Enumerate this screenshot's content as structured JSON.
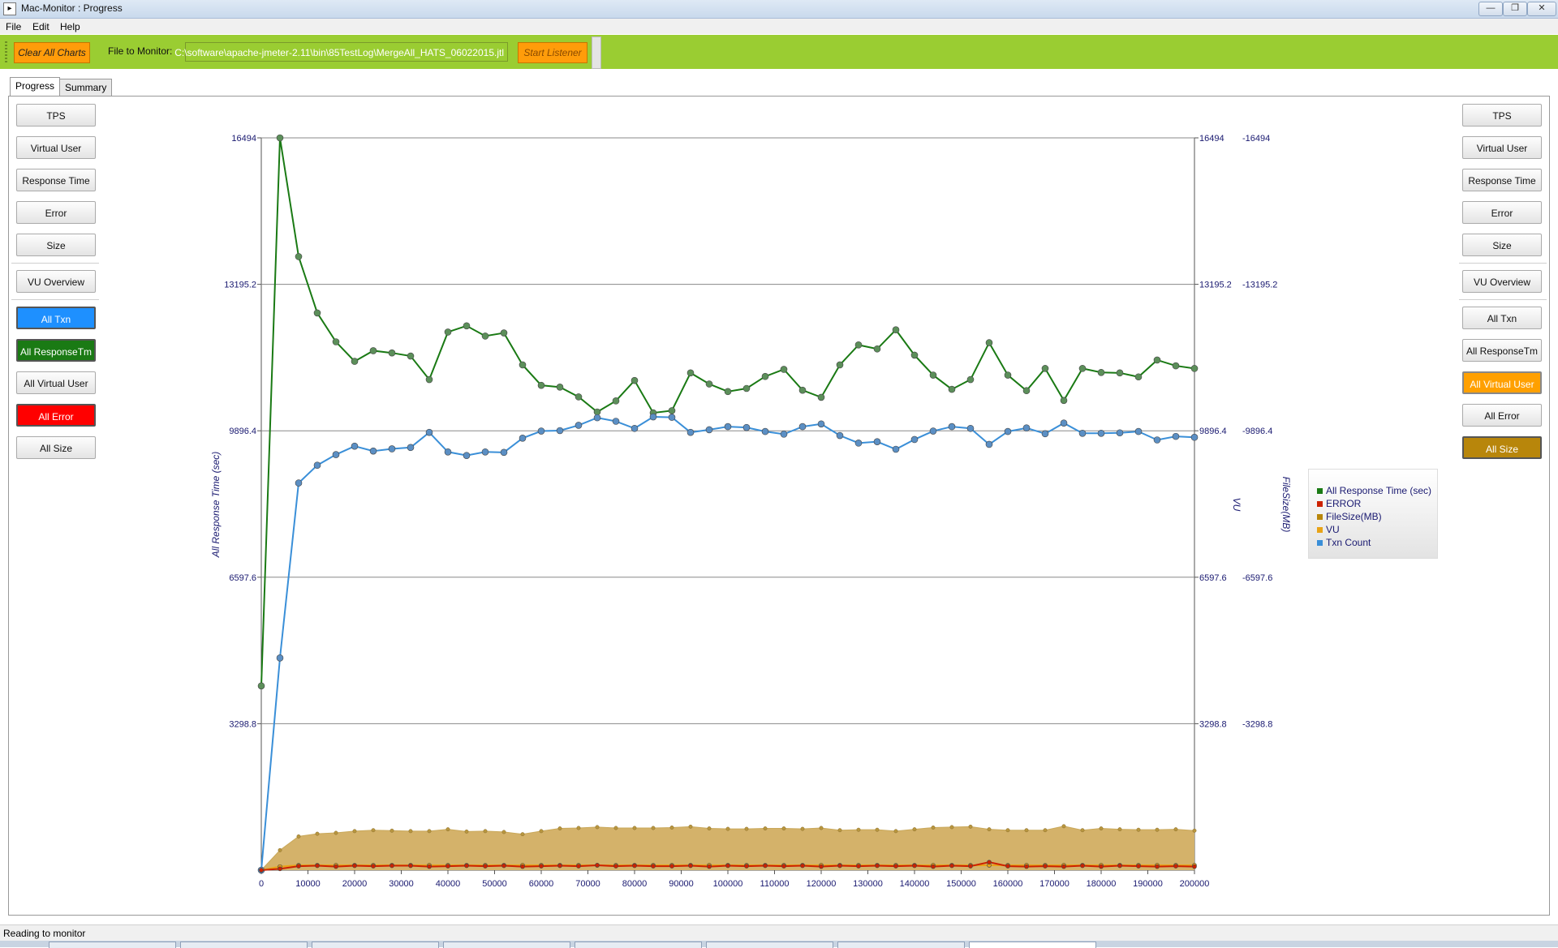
{
  "window": {
    "title": "Mac-Monitor : Progress",
    "controls": {
      "minimize": "—",
      "restore": "❐",
      "close": "✕"
    }
  },
  "menu": [
    "File",
    "Edit",
    "Help"
  ],
  "toolbar": {
    "clear_label": "Clear All Charts",
    "file_label": "File to Monitor:",
    "file_value": "C:\\software\\apache-jmeter-2.11\\bin\\85TestLog\\MergeAll_HATS_06022015.jtl",
    "start_label": "Start Listener"
  },
  "tabs": [
    "Progress",
    "Summary"
  ],
  "left_buttons": [
    "TPS",
    "Virtual User",
    "Response Time",
    "Error",
    "Size",
    "VU Overview",
    "All Txn",
    "All ResponseTm",
    "All Virtual User",
    "All Error",
    "All Size"
  ],
  "right_buttons": [
    "TPS",
    "Virtual User",
    "Response Time",
    "Error",
    "Size",
    "VU Overview",
    "All Txn",
    "All ResponseTm",
    "All Virtual User",
    "All Error",
    "All Size"
  ],
  "status": "Reading to monitor",
  "chart_data": {
    "type": "line",
    "ylabel": "All Response Time (sec)",
    "ylabel_right": [
      "VU",
      "FileSize(MB)"
    ],
    "ylim": [
      0,
      16494
    ],
    "yticks": [
      "3298.8",
      "6597.6",
      "9896.4",
      "13195.2",
      "16494"
    ],
    "xlim": [
      0,
      200000
    ],
    "xticks": [
      "0",
      "10000",
      "20000",
      "30000",
      "40000",
      "50000",
      "60000",
      "70000",
      "80000",
      "90000",
      "100000",
      "110000",
      "120000",
      "130000",
      "140000",
      "150000",
      "160000",
      "170000",
      "180000",
      "190000",
      "200000"
    ],
    "legend_position": "right",
    "grid": true,
    "series": [
      {
        "name": "All Response Time (sec)",
        "color": "#1a7a14",
        "kind": "line",
        "x": [
          0,
          4000,
          8000,
          12000,
          16000,
          20000,
          24000,
          28000,
          32000,
          36000,
          40000,
          44000,
          48000,
          52000,
          56000,
          60000,
          64000,
          68000,
          72000,
          76000,
          80000,
          84000,
          88000,
          92000,
          96000,
          100000,
          104000,
          108000,
          112000,
          116000,
          120000,
          124000,
          128000,
          132000,
          136000,
          140000,
          144000,
          148000,
          152000,
          156000,
          160000,
          164000,
          168000,
          172000,
          176000,
          180000,
          184000,
          188000,
          192000,
          196000,
          200000
        ],
        "values": [
          4150,
          16494,
          13820,
          12550,
          11900,
          11460,
          11700,
          11650,
          11580,
          11050,
          12120,
          12260,
          12030,
          12100,
          11380,
          10920,
          10880,
          10660,
          10320,
          10570,
          11030,
          10300,
          10350,
          11200,
          10950,
          10780,
          10850,
          11120,
          11280,
          10810,
          10650,
          11380,
          11830,
          11740,
          12170,
          11600,
          11150,
          10830,
          11050,
          11880,
          11150,
          10800,
          11300,
          10580,
          11300,
          11210,
          11200,
          11110,
          11490,
          11360,
          11300
        ]
      },
      {
        "name": "Txn Count",
        "color": "#3a8fd8",
        "kind": "line",
        "x": [
          0,
          4000,
          8000,
          12000,
          16000,
          20000,
          24000,
          28000,
          32000,
          36000,
          40000,
          44000,
          48000,
          52000,
          56000,
          60000,
          64000,
          68000,
          72000,
          76000,
          80000,
          84000,
          88000,
          92000,
          96000,
          100000,
          104000,
          108000,
          112000,
          116000,
          120000,
          124000,
          128000,
          132000,
          136000,
          140000,
          144000,
          148000,
          152000,
          156000,
          160000,
          164000,
          168000,
          172000,
          176000,
          180000,
          184000,
          188000,
          192000,
          196000,
          200000
        ],
        "values": [
          0,
          4780,
          8720,
          9120,
          9360,
          9550,
          9440,
          9490,
          9520,
          9860,
          9420,
          9340,
          9420,
          9410,
          9730,
          9890,
          9900,
          10020,
          10190,
          10110,
          9950,
          10210,
          10200,
          9860,
          9920,
          9990,
          9970,
          9880,
          9820,
          9990,
          10050,
          9790,
          9620,
          9650,
          9480,
          9700,
          9890,
          9990,
          9950,
          9590,
          9880,
          9960,
          9830,
          10070,
          9840,
          9840,
          9850,
          9880,
          9690,
          9770,
          9750
        ]
      },
      {
        "name": "FileSize(MB)",
        "color": "#b8860b",
        "kind": "area",
        "x": [
          0,
          4000,
          8000,
          12000,
          16000,
          20000,
          24000,
          28000,
          32000,
          36000,
          40000,
          44000,
          48000,
          52000,
          56000,
          60000,
          64000,
          68000,
          72000,
          76000,
          80000,
          84000,
          88000,
          92000,
          96000,
          100000,
          104000,
          108000,
          112000,
          116000,
          120000,
          124000,
          128000,
          132000,
          136000,
          140000,
          144000,
          148000,
          152000,
          156000,
          160000,
          164000,
          168000,
          172000,
          176000,
          180000,
          184000,
          188000,
          192000,
          196000,
          200000
        ],
        "values": [
          0,
          450,
          760,
          820,
          840,
          880,
          900,
          890,
          880,
          880,
          920,
          870,
          880,
          860,
          810,
          880,
          940,
          950,
          970,
          950,
          950,
          950,
          960,
          980,
          940,
          930,
          930,
          940,
          940,
          930,
          950,
          900,
          910,
          910,
          880,
          920,
          960,
          970,
          980,
          920,
          900,
          900,
          900,
          990,
          900,
          940,
          920,
          910,
          910,
          920,
          890
        ]
      },
      {
        "name": "VU",
        "color": "#e8a317",
        "kind": "line",
        "x": [
          0,
          4000,
          8000,
          12000,
          16000,
          20000,
          24000,
          28000,
          32000,
          36000,
          40000,
          44000,
          48000,
          52000,
          56000,
          60000,
          64000,
          68000,
          72000,
          76000,
          80000,
          84000,
          88000,
          92000,
          96000,
          100000,
          104000,
          108000,
          112000,
          116000,
          120000,
          124000,
          128000,
          132000,
          136000,
          140000,
          144000,
          148000,
          152000,
          156000,
          160000,
          164000,
          168000,
          172000,
          176000,
          180000,
          184000,
          188000,
          192000,
          196000,
          200000
        ],
        "values": [
          0,
          80,
          110,
          110,
          110,
          110,
          110,
          110,
          110,
          110,
          110,
          110,
          110,
          110,
          110,
          110,
          110,
          110,
          110,
          110,
          110,
          110,
          110,
          110,
          110,
          110,
          110,
          110,
          110,
          110,
          110,
          110,
          110,
          110,
          110,
          110,
          110,
          110,
          110,
          110,
          110,
          110,
          110,
          110,
          110,
          110,
          110,
          110,
          110,
          110,
          110
        ]
      },
      {
        "name": "ERROR",
        "color": "#cc2200",
        "kind": "line",
        "x": [
          0,
          4000,
          8000,
          12000,
          16000,
          20000,
          24000,
          28000,
          32000,
          36000,
          40000,
          44000,
          48000,
          52000,
          56000,
          60000,
          64000,
          68000,
          72000,
          76000,
          80000,
          84000,
          88000,
          92000,
          96000,
          100000,
          104000,
          108000,
          112000,
          116000,
          120000,
          124000,
          128000,
          132000,
          136000,
          140000,
          144000,
          148000,
          152000,
          156000,
          160000,
          164000,
          168000,
          172000,
          176000,
          180000,
          184000,
          188000,
          192000,
          196000,
          200000
        ],
        "values": [
          0,
          30,
          90,
          100,
          80,
          100,
          90,
          100,
          100,
          80,
          90,
          100,
          90,
          100,
          80,
          90,
          100,
          90,
          110,
          90,
          100,
          90,
          90,
          100,
          80,
          100,
          90,
          100,
          90,
          100,
          80,
          100,
          90,
          100,
          90,
          100,
          80,
          100,
          90,
          180,
          90,
          80,
          90,
          80,
          100,
          80,
          100,
          90,
          80,
          90,
          80
        ]
      }
    ]
  },
  "legend": [
    {
      "name": "All Response Time (sec)",
      "color": "#1a7a14"
    },
    {
      "name": "ERROR",
      "color": "#cc2200"
    },
    {
      "name": "FileSize(MB)",
      "color": "#b8860b"
    },
    {
      "name": "VU",
      "color": "#e8a317"
    },
    {
      "name": "Txn Count",
      "color": "#3a8fd8"
    }
  ]
}
